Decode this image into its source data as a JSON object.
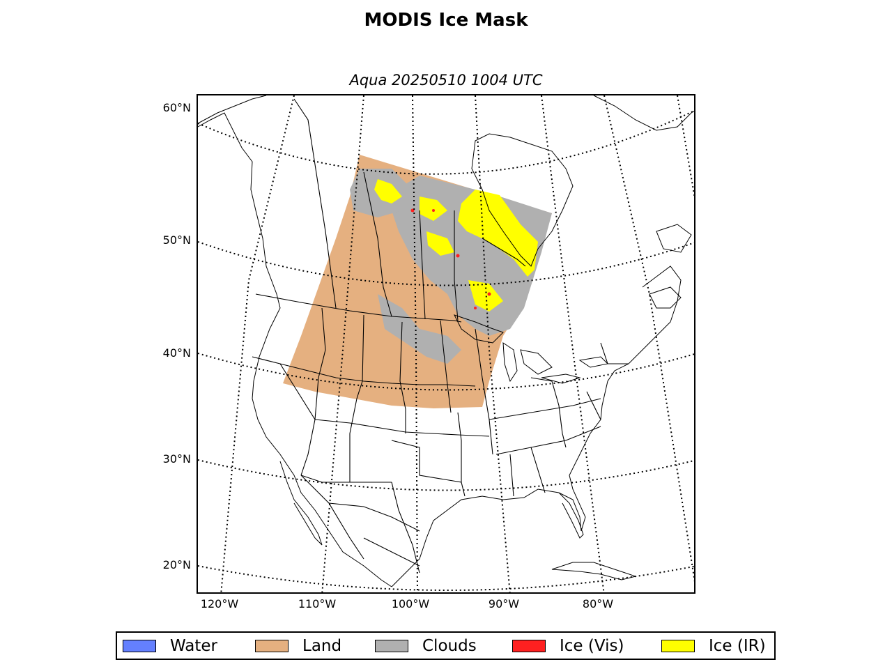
{
  "title": "MODIS Ice Mask",
  "subtitle": "Aqua 20250510 1004 UTC",
  "lat_labels": [
    "60°N",
    "50°N",
    "40°N",
    "30°N",
    "20°N"
  ],
  "lon_labels": [
    "120°W",
    "110°W",
    "100°W",
    "90°W",
    "80°W"
  ],
  "legend": [
    {
      "label": "Water",
      "color": "#6480ff"
    },
    {
      "label": "Land",
      "color": "#e5b080"
    },
    {
      "label": "Clouds",
      "color": "#b0b0b0"
    },
    {
      "label": "Ice (Vis)",
      "color": "#ff2020"
    },
    {
      "label": "Ice (IR)",
      "color": "#ffff00"
    }
  ]
}
